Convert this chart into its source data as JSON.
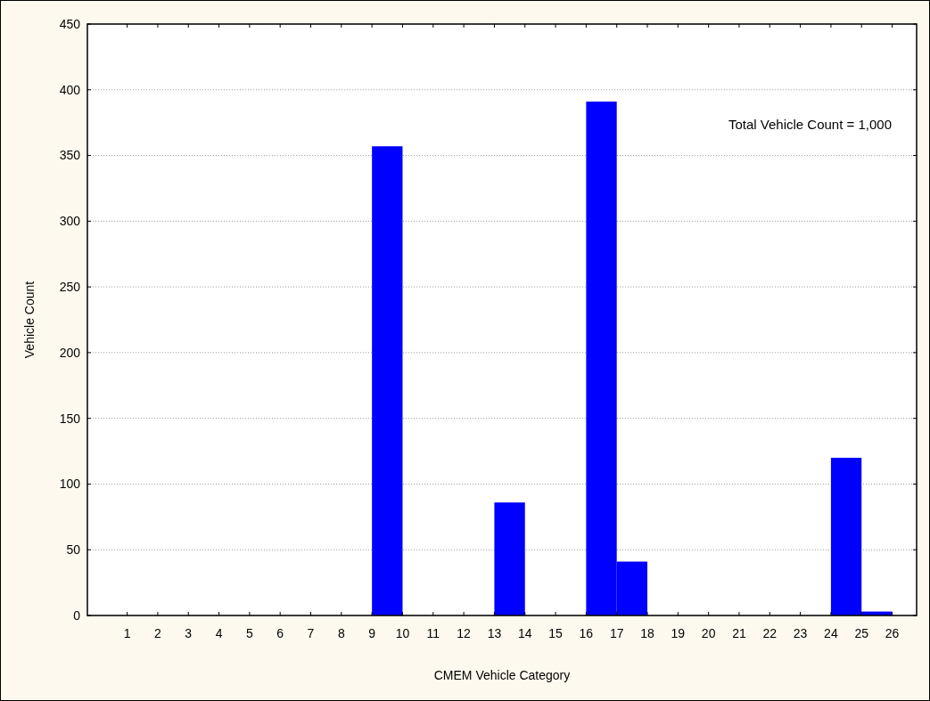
{
  "chart_data": {
    "type": "histogram",
    "xlabel": "CMEM Vehicle Category",
    "ylabel": "Vehicle Count",
    "bins": [
      1,
      2,
      3,
      4,
      5,
      6,
      7,
      8,
      9,
      10,
      11,
      12,
      13,
      14,
      15,
      16,
      17,
      18,
      19,
      20,
      21,
      22,
      23,
      24,
      25,
      26
    ],
    "values": [
      0,
      0,
      0,
      0,
      0,
      0,
      0,
      0,
      357,
      0,
      0,
      0,
      86,
      0,
      0,
      391,
      41,
      0,
      0,
      0,
      0,
      0,
      0,
      120,
      3
    ],
    "color": "#0000ff",
    "xlim": [
      -0.3,
      26.8
    ],
    "xticks": [
      1,
      2,
      3,
      4,
      5,
      6,
      7,
      8,
      9,
      10,
      11,
      12,
      13,
      14,
      15,
      16,
      17,
      18,
      19,
      20,
      21,
      22,
      23,
      24,
      25,
      26
    ],
    "ylim": [
      0,
      450
    ],
    "yticks": [
      0,
      50,
      100,
      150,
      200,
      250,
      300,
      350,
      400,
      450
    ],
    "grid": "y",
    "annotations": [
      "Total Vehicle Count = 1,000"
    ]
  }
}
